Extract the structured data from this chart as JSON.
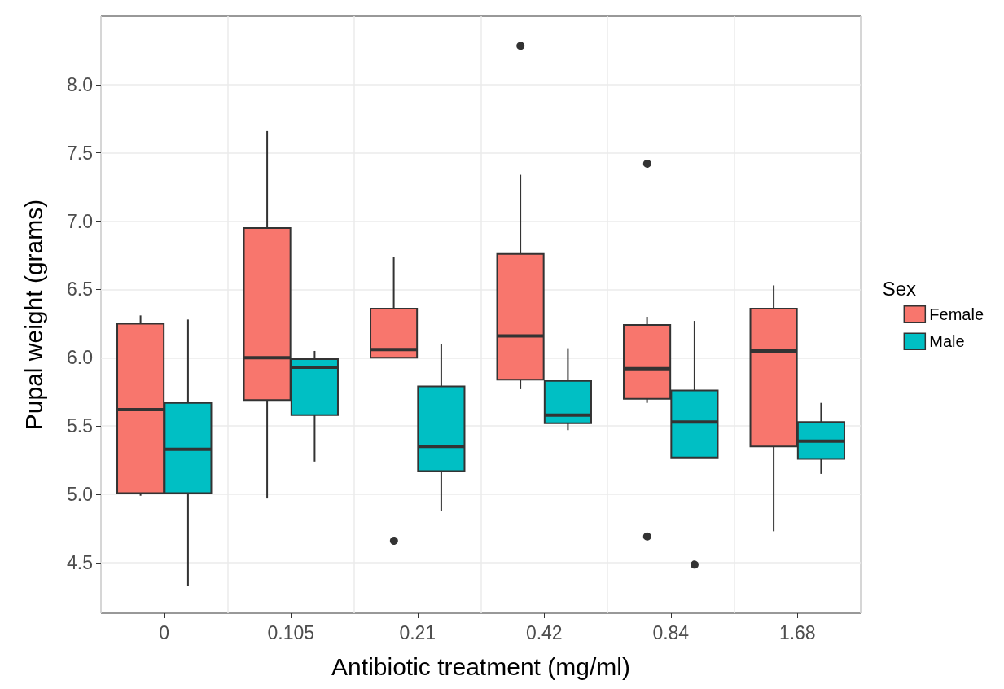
{
  "chart_data": {
    "type": "box",
    "xlabel": "Antibiotic treatment (mg/ml)",
    "ylabel": "Pupal weight (grams)",
    "legend_title": "Sex",
    "legend": "right",
    "grid": true,
    "categories": [
      "0",
      "0.105",
      "0.21",
      "0.42",
      "0.84",
      "1.68"
    ],
    "ylim": [
      4.13,
      8.5
    ],
    "yticks": [
      {
        "value": 4.5,
        "label": "4.5"
      },
      {
        "value": 5,
        "label": "5.0"
      },
      {
        "value": 5.5,
        "label": "5.5"
      },
      {
        "value": 6,
        "label": "6.0"
      },
      {
        "value": 6.5,
        "label": "6.5"
      },
      {
        "value": 7,
        "label": "7.0"
      },
      {
        "value": 7.5,
        "label": "7.5"
      },
      {
        "value": 8,
        "label": "8.0"
      }
    ],
    "series": [
      {
        "name": "Female",
        "color": "#f8766d",
        "boxes": [
          {
            "low": 4.99,
            "q1": 5.01,
            "median": 5.62,
            "q3": 6.25,
            "high": 6.31
          },
          {
            "low": 4.97,
            "q1": 5.69,
            "median": 6.0,
            "q3": 6.95,
            "high": 7.66
          },
          {
            "low": 6.0,
            "q1": 6.0,
            "median": 6.06,
            "q3": 6.36,
            "high": 6.74,
            "outliers": [
              4.67
            ]
          },
          {
            "low": 5.77,
            "q1": 5.84,
            "median": 6.16,
            "q3": 6.76,
            "high": 7.34,
            "outliers": [
              8.29
            ]
          },
          {
            "low": 5.67,
            "q1": 5.7,
            "median": 5.92,
            "q3": 6.24,
            "high": 6.3,
            "outliers": [
              7.43,
              4.7
            ]
          },
          {
            "low": 4.73,
            "q1": 5.35,
            "median": 6.05,
            "q3": 6.36,
            "high": 6.53
          }
        ]
      },
      {
        "name": "Male",
        "color": "#00bfc4",
        "boxes": [
          {
            "low": 4.33,
            "q1": 5.01,
            "median": 5.33,
            "q3": 5.67,
            "high": 6.28
          },
          {
            "low": 5.24,
            "q1": 5.58,
            "median": 5.93,
            "q3": 5.99,
            "high": 6.05
          },
          {
            "low": 4.88,
            "q1": 5.17,
            "median": 5.35,
            "q3": 5.79,
            "high": 6.1
          },
          {
            "low": 5.47,
            "q1": 5.52,
            "median": 5.58,
            "q3": 5.83,
            "high": 6.07
          },
          {
            "low": 5.27,
            "q1": 5.27,
            "median": 5.53,
            "q3": 5.76,
            "high": 6.27,
            "outliers": [
              4.49
            ]
          },
          {
            "low": 5.15,
            "q1": 5.26,
            "median": 5.39,
            "q3": 5.53,
            "high": 5.67
          }
        ]
      }
    ]
  }
}
